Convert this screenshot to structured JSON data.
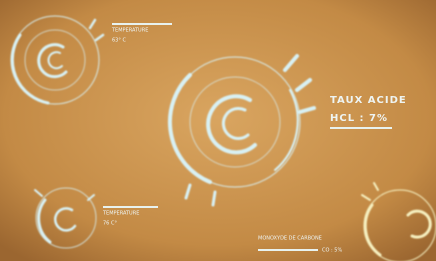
{
  "widgets": [
    {
      "label": "TEMPERATURE",
      "value": "63° C"
    },
    {
      "label": "TAUX ACIDE",
      "value": "HCL : 7%"
    },
    {
      "label": "TEMPERATURE",
      "value": "76 C°"
    },
    {
      "label": "MONOXYDE DE CARBONE",
      "value": "CO : 5%"
    }
  ]
}
